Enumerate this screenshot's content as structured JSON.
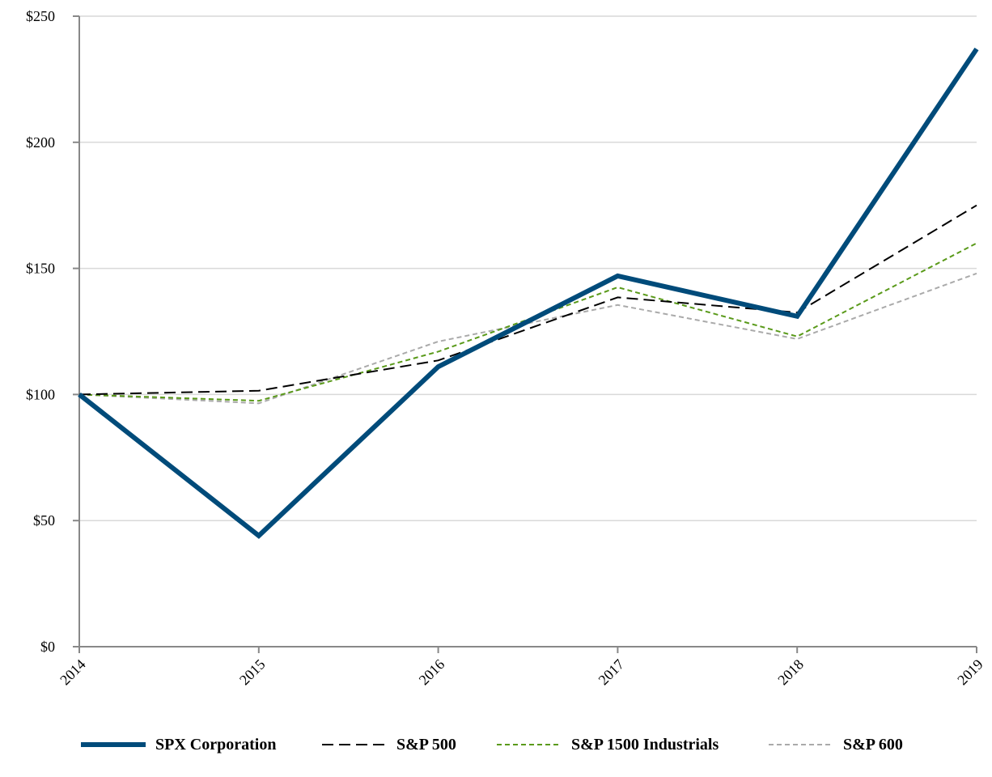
{
  "chart_data": {
    "type": "line",
    "categories": [
      "2014",
      "2015",
      "2016",
      "2017",
      "2018",
      "2019"
    ],
    "ylim": [
      0,
      250
    ],
    "y_ticks": [
      0,
      50,
      100,
      150,
      200,
      250
    ],
    "y_tick_labels": [
      "$0",
      "$50",
      "$100",
      "$150",
      "$200",
      "$250"
    ],
    "grid": true,
    "legend_position": "bottom",
    "series": [
      {
        "name": "SPX Corporation",
        "values": [
          100,
          44,
          111,
          147,
          131,
          237
        ],
        "color": "#004b7a",
        "style": "solid"
      },
      {
        "name": "S&P 500",
        "values": [
          100,
          101.5,
          113.5,
          138.5,
          132.5,
          175
        ],
        "color": "#000000",
        "style": "long-dash"
      },
      {
        "name": "S&P 1500 Industrials",
        "values": [
          100,
          97.5,
          117,
          142.5,
          123,
          160
        ],
        "color": "#5a9a1a",
        "style": "short-dash"
      },
      {
        "name": "S&P 600",
        "values": [
          100,
          96.5,
          121,
          135.5,
          122,
          148
        ],
        "color": "#aaaaaa",
        "style": "short-dash"
      }
    ]
  }
}
